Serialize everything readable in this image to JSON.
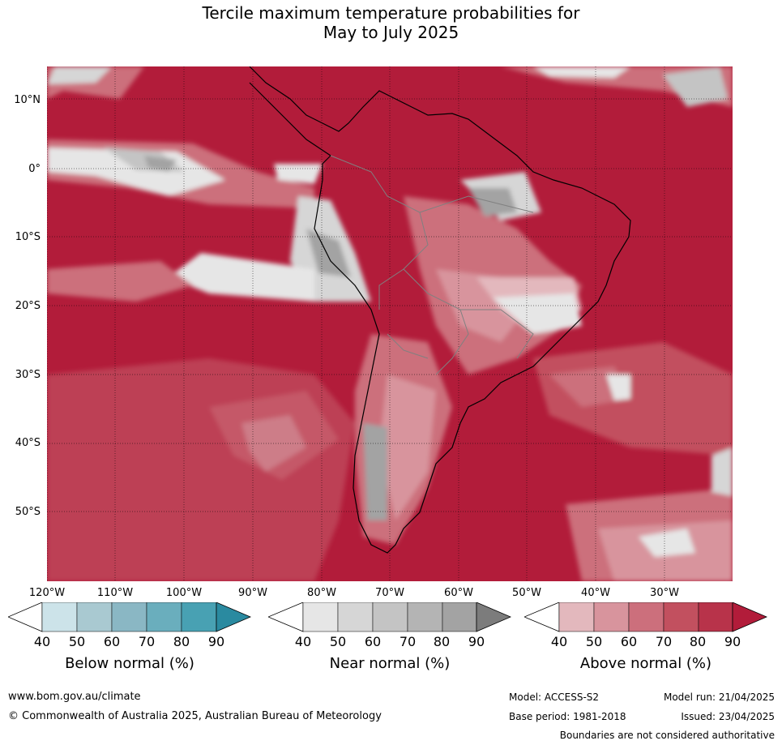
{
  "title_line1": "Tercile maximum temperature probabilities for",
  "title_line2": "May to July 2025",
  "lat_labels": [
    "10°N",
    "0°",
    "10°S",
    "20°S",
    "30°S",
    "40°S",
    "50°S"
  ],
  "lon_labels": [
    "120°W",
    "110°W",
    "100°W",
    "90°W",
    "80°W",
    "70°W",
    "60°W",
    "50°W",
    "40°W",
    "30°W"
  ],
  "colorbars": [
    {
      "title": "Below normal (%)",
      "ticks": [
        "40",
        "50",
        "60",
        "70",
        "80",
        "90"
      ],
      "colors": [
        "#ffffff",
        "#cce3e9",
        "#a9c9d1",
        "#8ab7c4",
        "#6aaebd",
        "#48a1b3",
        "#2a8aa0"
      ]
    },
    {
      "title": "Near normal (%)",
      "ticks": [
        "40",
        "50",
        "60",
        "70",
        "80",
        "90"
      ],
      "colors": [
        "#ffffff",
        "#e6e6e6",
        "#d6d6d6",
        "#c4c4c4",
        "#b4b4b4",
        "#a3a3a3",
        "#7c7c7c"
      ]
    },
    {
      "title": "Above normal (%)",
      "ticks": [
        "40",
        "50",
        "60",
        "70",
        "80",
        "90"
      ],
      "colors": [
        "#ffffff",
        "#e3b8bd",
        "#d8949d",
        "#cc6f7c",
        "#c2505f",
        "#b8334a",
        "#b21c3a"
      ]
    }
  ],
  "map_colors": {
    "above_90": "#b21c3a",
    "above_80": "#b8334a",
    "above_70": "#c2505f",
    "above_60": "#cc6f7c",
    "above_50": "#d8949d",
    "above_40": "#e3b8bd",
    "near_light": "#e6e6e6",
    "near_mid": "#c4c4c4",
    "near_dark": "#a3a3a3"
  },
  "footer": {
    "website": "www.bom.gov.au/climate",
    "copyright": "© Commonwealth of Australia 2025, Australian Bureau of Meteorology",
    "model": "Model: ACCESS-S2",
    "base_period": "Base period: 1981-2018",
    "model_run": "Model run: 21/04/2025",
    "issued": "Issued: 23/04/2025",
    "disclaimer": "Boundaries are not considered authoritative"
  }
}
